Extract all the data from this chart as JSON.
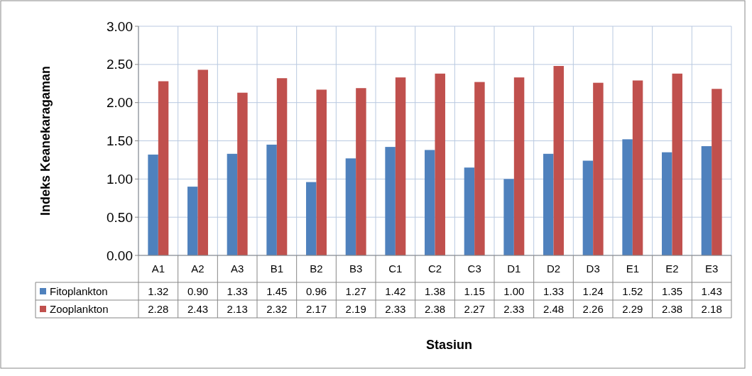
{
  "chart_data": {
    "type": "bar",
    "ylabel": "Indeks Keanekaragaman",
    "xlabel": "Stasiun",
    "categories": [
      "A1",
      "A2",
      "A3",
      "B1",
      "B2",
      "B3",
      "C1",
      "C2",
      "C3",
      "D1",
      "D2",
      "D3",
      "E1",
      "E2",
      "E3"
    ],
    "series": [
      {
        "name": "Fitoplankton",
        "color": "#4f81bd",
        "values": [
          1.32,
          0.9,
          1.33,
          1.45,
          0.96,
          1.27,
          1.42,
          1.38,
          1.15,
          1.0,
          1.33,
          1.24,
          1.52,
          1.35,
          1.43
        ],
        "value_labels": [
          "1.32",
          "0.90",
          "1.33",
          "1.45",
          "0.96",
          "1.27",
          "1.42",
          "1.38",
          "1.15",
          "1.00",
          "1.33",
          "1.24",
          "1.52",
          "1.35",
          "1.43"
        ]
      },
      {
        "name": "Zooplankton",
        "color": "#c0504d",
        "values": [
          2.28,
          2.43,
          2.13,
          2.32,
          2.17,
          2.19,
          2.33,
          2.38,
          2.27,
          2.33,
          2.48,
          2.26,
          2.29,
          2.38,
          2.18
        ],
        "value_labels": [
          "2.28",
          "2.43",
          "2.13",
          "2.32",
          "2.17",
          "2.19",
          "2.33",
          "2.38",
          "2.27",
          "2.33",
          "2.48",
          "2.26",
          "2.29",
          "2.38",
          "2.18"
        ]
      }
    ],
    "ylim": [
      0,
      3
    ],
    "yticks": [
      {
        "value": 0,
        "label": "0.00"
      },
      {
        "value": 0.5,
        "label": "0.50"
      },
      {
        "value": 1,
        "label": "1.00"
      },
      {
        "value": 1.5,
        "label": "1.50"
      },
      {
        "value": 2,
        "label": "2.00"
      },
      {
        "value": 2.5,
        "label": "2.50"
      },
      {
        "value": 3,
        "label": "3.00"
      }
    ],
    "grid": true,
    "legend": "bottom"
  }
}
